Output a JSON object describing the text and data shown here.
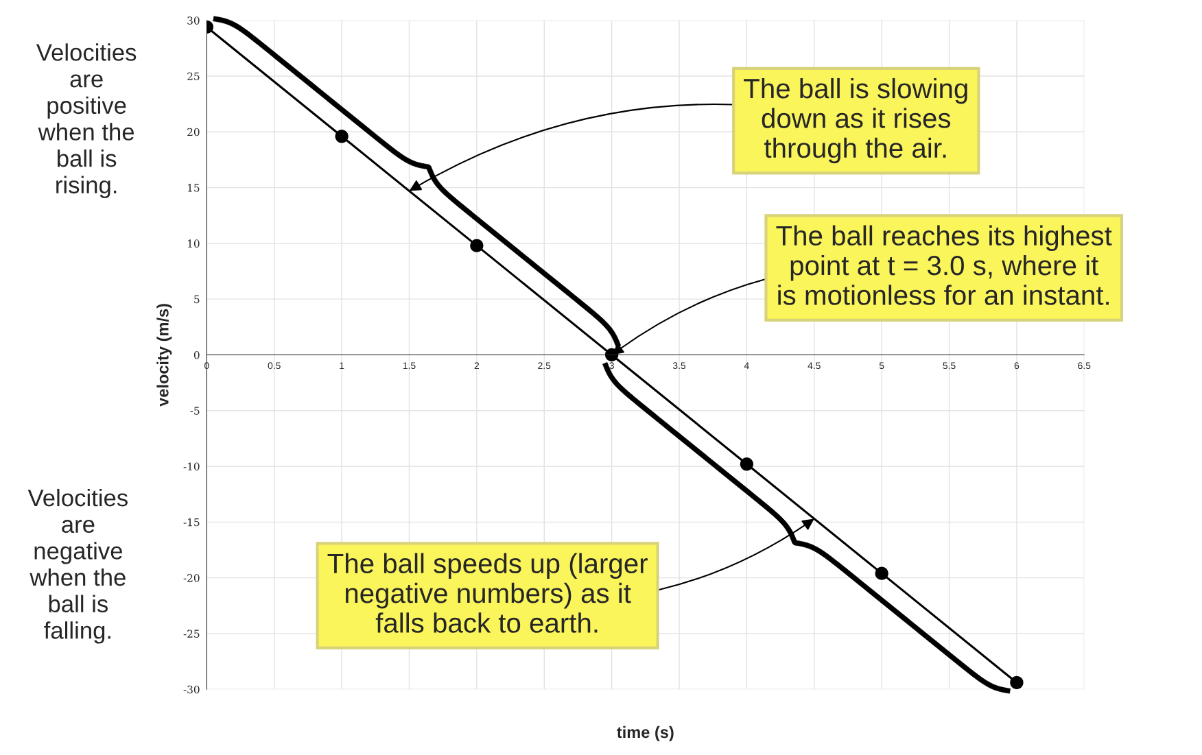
{
  "chart_data": {
    "type": "line",
    "xlabel": "time (s)",
    "ylabel": "velocity (m/s)",
    "x": [
      0,
      1,
      2,
      3,
      4,
      5,
      6
    ],
    "series": [
      {
        "color": "#000000",
        "values": [
          29.4,
          19.6,
          9.8,
          0,
          -9.8,
          -19.6,
          -29.4
        ]
      }
    ],
    "xlim": [
      0,
      6.5
    ],
    "ylim": [
      -30,
      30
    ],
    "xticks": [
      0,
      0.5,
      1,
      1.5,
      2,
      2.5,
      3,
      3.5,
      4,
      4.5,
      5,
      5.5,
      6,
      6.5
    ],
    "yticks": [
      -30,
      -25,
      -20,
      -15,
      -10,
      -5,
      0,
      5,
      10,
      15,
      20,
      25,
      30
    ],
    "grid": true,
    "marker": "circle",
    "line_style": "solid",
    "annotations": [
      "Velocities\nare\npositive\nwhen the\nball is\nrising.",
      "Velocities\nare\nnegative\nwhen the\nball is\nfalling.",
      {
        "text": "The ball is slowing\ndown as it rises\nthrough the air.",
        "x": 1.5,
        "y": 14.7
      },
      {
        "text": "The ball reaches its highest\npoint at t = 3.0 s, where it\nis motionless for an instant.",
        "x": 3,
        "y": 0
      },
      {
        "text": "The ball speeds up (larger\nnegative numbers) as it\nfalls back to earth.",
        "x": 4.5,
        "y": -14.7
      }
    ]
  }
}
